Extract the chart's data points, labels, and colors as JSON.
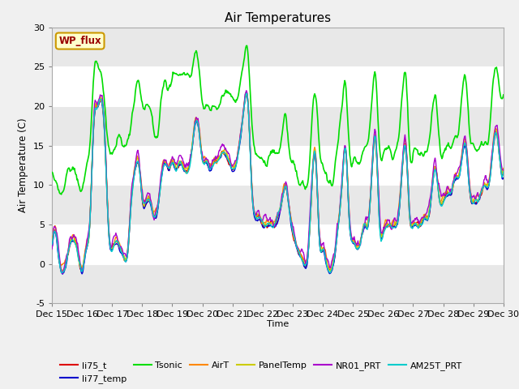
{
  "title": "Air Temperatures",
  "xlabel": "Time",
  "ylabel": "Air Temperature (C)",
  "ylim": [
    -5,
    30
  ],
  "xlim": [
    0,
    360
  ],
  "x_tick_labels": [
    "Dec 15",
    "Dec 16",
    "Dec 17",
    "Dec 18",
    "Dec 19",
    "Dec 20",
    "Dec 21",
    "Dec 22",
    "Dec 23",
    "Dec 24",
    "Dec 25",
    "Dec 26",
    "Dec 27",
    "Dec 28",
    "Dec 29",
    "Dec 30"
  ],
  "x_tick_positions": [
    0,
    24,
    48,
    72,
    96,
    120,
    144,
    168,
    192,
    216,
    240,
    264,
    288,
    312,
    336,
    360
  ],
  "yticks": [
    -5,
    0,
    5,
    10,
    15,
    20,
    25,
    30
  ],
  "annotation_text": "WP_flux",
  "bg_color": "#f0f0f0",
  "plot_bg_color": "#ffffff",
  "series": {
    "li75_t": {
      "color": "#dd0000",
      "lw": 1.0
    },
    "li77_temp": {
      "color": "#0000cc",
      "lw": 1.0
    },
    "Tsonic": {
      "color": "#00dd00",
      "lw": 1.2
    },
    "AirT": {
      "color": "#ff8800",
      "lw": 1.0
    },
    "PanelTemp": {
      "color": "#cccc00",
      "lw": 1.0
    },
    "NR01_PRT": {
      "color": "#aa00cc",
      "lw": 1.0
    },
    "AM25T_PRT": {
      "color": "#00cccc",
      "lw": 1.0
    }
  },
  "legend": [
    {
      "label": "li75_t",
      "color": "#dd0000"
    },
    {
      "label": "li77_temp",
      "color": "#0000cc"
    },
    {
      "label": "Tsonic",
      "color": "#00dd00"
    },
    {
      "label": "AirT",
      "color": "#ff8800"
    },
    {
      "label": "PanelTemp",
      "color": "#cccc00"
    },
    {
      "label": "NR01_PRT",
      "color": "#aa00cc"
    },
    {
      "label": "AM25T_PRT",
      "color": "#00cccc"
    }
  ],
  "cluster_pts": [
    [
      0,
      2
    ],
    [
      3,
      4
    ],
    [
      6,
      0
    ],
    [
      9,
      -1
    ],
    [
      12,
      1
    ],
    [
      15,
      3
    ],
    [
      18,
      3
    ],
    [
      21,
      1
    ],
    [
      24,
      -1
    ],
    [
      27,
      2
    ],
    [
      30,
      5
    ],
    [
      33,
      18
    ],
    [
      36,
      20
    ],
    [
      39,
      21
    ],
    [
      42,
      16
    ],
    [
      45,
      4
    ],
    [
      48,
      2
    ],
    [
      51,
      3
    ],
    [
      54,
      2
    ],
    [
      57,
      1
    ],
    [
      60,
      1
    ],
    [
      63,
      8
    ],
    [
      66,
      12
    ],
    [
      69,
      13
    ],
    [
      72,
      8
    ],
    [
      75,
      8
    ],
    [
      78,
      8
    ],
    [
      81,
      6
    ],
    [
      84,
      7
    ],
    [
      87,
      11
    ],
    [
      90,
      13
    ],
    [
      93,
      12
    ],
    [
      96,
      13
    ],
    [
      99,
      12
    ],
    [
      102,
      13
    ],
    [
      105,
      12
    ],
    [
      108,
      12
    ],
    [
      111,
      14
    ],
    [
      114,
      18
    ],
    [
      117,
      17
    ],
    [
      120,
      13
    ],
    [
      123,
      13
    ],
    [
      126,
      12
    ],
    [
      129,
      13
    ],
    [
      132,
      13
    ],
    [
      135,
      14
    ],
    [
      138,
      14
    ],
    [
      141,
      13
    ],
    [
      144,
      12
    ],
    [
      147,
      13
    ],
    [
      150,
      16
    ],
    [
      153,
      20
    ],
    [
      156,
      21
    ],
    [
      159,
      10
    ],
    [
      162,
      6
    ],
    [
      165,
      6
    ],
    [
      168,
      5
    ],
    [
      171,
      5
    ],
    [
      174,
      5
    ],
    [
      177,
      5
    ],
    [
      180,
      6
    ],
    [
      183,
      8
    ],
    [
      186,
      10
    ],
    [
      189,
      7
    ],
    [
      192,
      4
    ],
    [
      195,
      2
    ],
    [
      198,
      1
    ],
    [
      201,
      0
    ],
    [
      204,
      1
    ],
    [
      207,
      10
    ],
    [
      210,
      14
    ],
    [
      213,
      3
    ],
    [
      216,
      2
    ],
    [
      219,
      0
    ],
    [
      222,
      -1
    ],
    [
      225,
      1
    ],
    [
      228,
      5
    ],
    [
      231,
      10
    ],
    [
      234,
      15
    ],
    [
      237,
      5
    ],
    [
      240,
      3
    ],
    [
      243,
      2
    ],
    [
      246,
      3
    ],
    [
      249,
      5
    ],
    [
      252,
      5
    ],
    [
      255,
      12
    ],
    [
      258,
      16
    ],
    [
      261,
      5
    ],
    [
      264,
      4
    ],
    [
      267,
      5
    ],
    [
      270,
      5
    ],
    [
      273,
      5
    ],
    [
      276,
      6
    ],
    [
      279,
      12
    ],
    [
      282,
      15
    ],
    [
      285,
      6
    ],
    [
      288,
      5
    ],
    [
      291,
      5
    ],
    [
      294,
      5
    ],
    [
      297,
      6
    ],
    [
      300,
      6
    ],
    [
      303,
      10
    ],
    [
      306,
      12
    ],
    [
      309,
      8
    ],
    [
      312,
      8
    ],
    [
      315,
      9
    ],
    [
      318,
      9
    ],
    [
      321,
      11
    ],
    [
      324,
      11
    ],
    [
      327,
      14
    ],
    [
      330,
      15
    ],
    [
      333,
      9
    ],
    [
      336,
      8
    ],
    [
      339,
      8
    ],
    [
      342,
      9
    ],
    [
      345,
      10
    ],
    [
      348,
      10
    ],
    [
      351,
      14
    ],
    [
      354,
      17
    ],
    [
      357,
      13
    ],
    [
      360,
      12
    ]
  ],
  "tsonic_pts": [
    [
      0,
      12
    ],
    [
      3,
      10
    ],
    [
      6,
      9
    ],
    [
      9,
      9
    ],
    [
      12,
      12
    ],
    [
      15,
      12
    ],
    [
      18,
      12
    ],
    [
      21,
      10
    ],
    [
      24,
      9
    ],
    [
      27,
      12
    ],
    [
      30,
      15
    ],
    [
      33,
      24
    ],
    [
      36,
      25
    ],
    [
      39,
      24
    ],
    [
      42,
      20
    ],
    [
      45,
      15
    ],
    [
      48,
      14
    ],
    [
      51,
      15
    ],
    [
      54,
      16
    ],
    [
      57,
      15
    ],
    [
      60,
      15
    ],
    [
      63,
      18
    ],
    [
      66,
      22
    ],
    [
      69,
      23
    ],
    [
      72,
      20
    ],
    [
      75,
      20
    ],
    [
      78,
      20
    ],
    [
      81,
      17
    ],
    [
      84,
      16
    ],
    [
      87,
      21
    ],
    [
      90,
      23
    ],
    [
      93,
      22
    ],
    [
      96,
      24
    ],
    [
      99,
      24
    ],
    [
      102,
      24
    ],
    [
      105,
      24
    ],
    [
      108,
      24
    ],
    [
      111,
      24
    ],
    [
      114,
      27
    ],
    [
      117,
      25
    ],
    [
      120,
      20
    ],
    [
      123,
      20
    ],
    [
      126,
      20
    ],
    [
      129,
      20
    ],
    [
      132,
      20
    ],
    [
      135,
      21
    ],
    [
      138,
      22
    ],
    [
      141,
      22
    ],
    [
      144,
      21
    ],
    [
      147,
      21
    ],
    [
      150,
      23
    ],
    [
      153,
      26
    ],
    [
      156,
      27
    ],
    [
      159,
      18
    ],
    [
      162,
      14
    ],
    [
      165,
      14
    ],
    [
      168,
      13
    ],
    [
      171,
      13
    ],
    [
      174,
      14
    ],
    [
      177,
      14
    ],
    [
      180,
      14
    ],
    [
      183,
      16
    ],
    [
      186,
      19
    ],
    [
      189,
      14
    ],
    [
      192,
      13
    ],
    [
      195,
      11
    ],
    [
      198,
      10
    ],
    [
      201,
      10
    ],
    [
      204,
      10
    ],
    [
      207,
      18
    ],
    [
      210,
      22
    ],
    [
      213,
      15
    ],
    [
      216,
      12
    ],
    [
      219,
      11
    ],
    [
      222,
      10
    ],
    [
      225,
      12
    ],
    [
      228,
      16
    ],
    [
      231,
      20
    ],
    [
      234,
      23
    ],
    [
      237,
      14
    ],
    [
      240,
      13
    ],
    [
      243,
      13
    ],
    [
      246,
      13
    ],
    [
      249,
      15
    ],
    [
      252,
      16
    ],
    [
      255,
      21
    ],
    [
      258,
      24
    ],
    [
      261,
      14
    ],
    [
      264,
      14
    ],
    [
      267,
      15
    ],
    [
      270,
      14
    ],
    [
      273,
      14
    ],
    [
      276,
      16
    ],
    [
      279,
      21
    ],
    [
      282,
      24
    ],
    [
      285,
      14
    ],
    [
      288,
      14
    ],
    [
      291,
      14
    ],
    [
      294,
      14
    ],
    [
      297,
      14
    ],
    [
      300,
      15
    ],
    [
      303,
      19
    ],
    [
      306,
      21
    ],
    [
      309,
      15
    ],
    [
      312,
      14
    ],
    [
      315,
      15
    ],
    [
      318,
      15
    ],
    [
      321,
      16
    ],
    [
      324,
      17
    ],
    [
      327,
      22
    ],
    [
      330,
      23
    ],
    [
      333,
      16
    ],
    [
      336,
      15
    ],
    [
      339,
      14
    ],
    [
      342,
      15
    ],
    [
      345,
      15
    ],
    [
      348,
      16
    ],
    [
      351,
      22
    ],
    [
      354,
      25
    ],
    [
      357,
      22
    ],
    [
      360,
      22
    ]
  ]
}
